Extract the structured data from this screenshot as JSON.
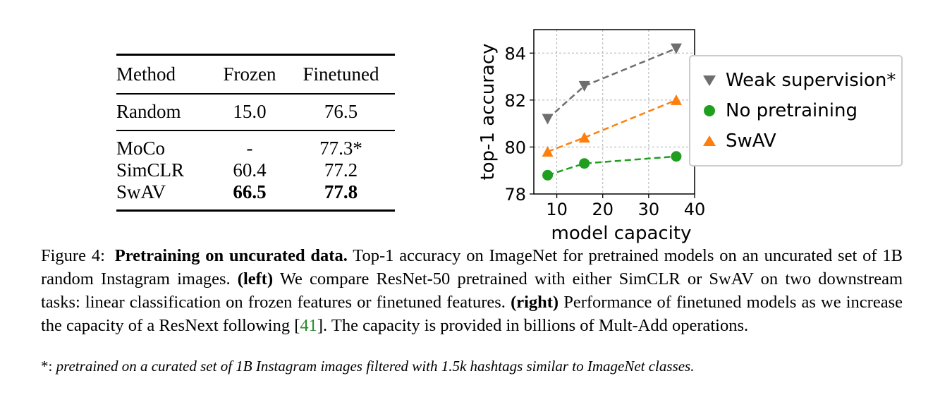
{
  "table": {
    "headers": [
      "Method",
      "Frozen",
      "Finetuned"
    ],
    "group1": [
      {
        "method": "Random",
        "frozen": "15.0",
        "finetuned": "76.5"
      }
    ],
    "group2": [
      {
        "method": "MoCo",
        "frozen": "-",
        "finetuned": "77.3*"
      },
      {
        "method": "SimCLR",
        "frozen": "60.4",
        "finetuned": "77.2"
      },
      {
        "method": "SwAV",
        "frozen": "66.5",
        "finetuned": "77.8"
      }
    ]
  },
  "chart_data": {
    "type": "line",
    "xlabel": "model capacity",
    "ylabel": "top-1 accuracy",
    "xlim": [
      5,
      40
    ],
    "ylim": [
      78,
      85
    ],
    "xticks": [
      10,
      20,
      30,
      40
    ],
    "yticks": [
      78,
      80,
      82,
      84
    ],
    "grid": true,
    "legend_position": "outside-right",
    "series": [
      {
        "name": "Weak supervision*",
        "marker": "triangle-down",
        "color": "#6e6e6e",
        "x": [
          8,
          16,
          36
        ],
        "y": [
          81.2,
          82.6,
          84.2
        ]
      },
      {
        "name": "No pretraining",
        "marker": "circle",
        "color": "#1f9e1f",
        "x": [
          8,
          16,
          36
        ],
        "y": [
          78.8,
          79.3,
          79.6
        ]
      },
      {
        "name": "SwAV",
        "marker": "triangle-up",
        "color": "#ff7f0e",
        "x": [
          8,
          16,
          36
        ],
        "y": [
          79.8,
          80.4,
          82.0
        ]
      }
    ]
  },
  "caption": {
    "label": "Figure 4:",
    "bold_title": "Pretraining on uncurated data.",
    "text1": " Top-1 accuracy on ImageNet for pretrained models on an uncurated set of 1B random Instagram images. ",
    "left_label": "(left)",
    "text2": " We compare ResNet-50 pretrained with either SimCLR or SwAV on two downstream tasks: linear classification on frozen features or finetuned features. ",
    "right_label": "(right)",
    "text3": " Performance of finetuned models as we increase the capacity of a ResNext following [",
    "citation": "41",
    "text4": "]. The capacity is provided in billions of Mult-Add operations."
  },
  "footnote": {
    "mark": "*:",
    "text": " pretrained on a curated set of 1B Instagram images filtered with 1.5k hashtags similar to ImageNet classes."
  }
}
